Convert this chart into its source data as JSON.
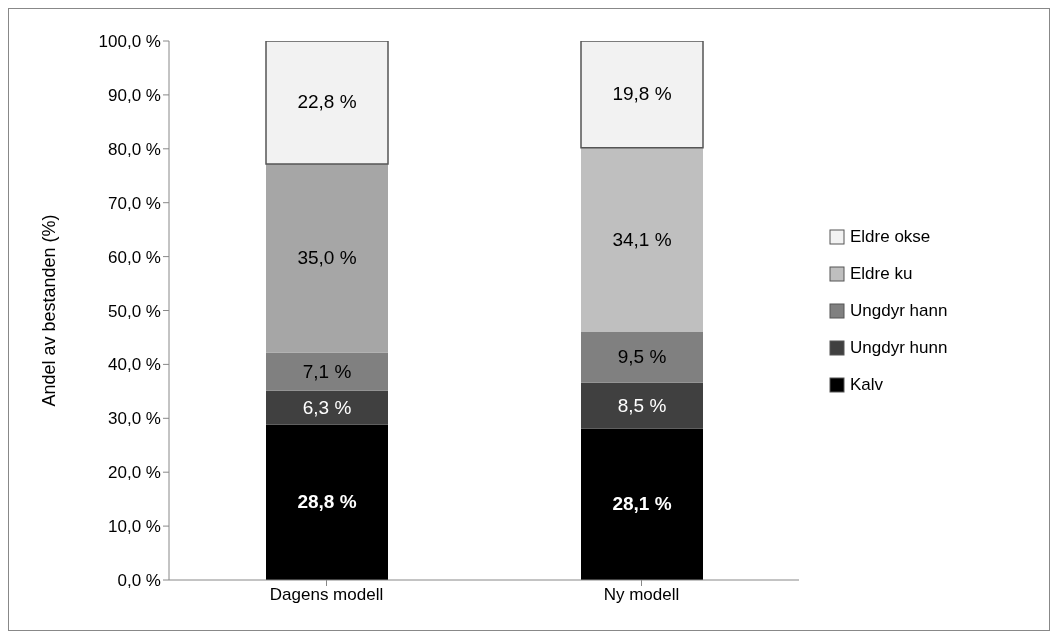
{
  "chart_data": {
    "type": "bar",
    "stacked": true,
    "ylabel": "Andel av bestanden (%)",
    "categories": [
      "Dagens modell",
      "Ny modell"
    ],
    "series": [
      {
        "name": "Kalv",
        "color": "#000000",
        "values": [
          28.8,
          28.1
        ],
        "value_labels": [
          "28,8 %",
          "28,1 %"
        ]
      },
      {
        "name": "Ungdyr hunn",
        "color": "#404040",
        "values": [
          6.3,
          8.5
        ],
        "value_labels": [
          "6,3 %",
          "8,5 %"
        ]
      },
      {
        "name": "Ungdyr hann",
        "color": "#808080",
        "values": [
          7.1,
          9.5
        ],
        "value_labels": [
          "7,1 %",
          "9,5 %"
        ]
      },
      {
        "name": "Eldre ku",
        "color": "#bfbfbf",
        "colors": [
          "#a6a6a6",
          "#bfbfbf"
        ],
        "values": [
          35.0,
          34.1
        ],
        "value_labels": [
          "35,0 %",
          "34,1 %"
        ]
      },
      {
        "name": "Eldre okse",
        "color": "#f2f2f2",
        "values": [
          22.8,
          19.8
        ],
        "value_labels": [
          "22,8 %",
          "19,8 %"
        ]
      }
    ],
    "ylim": [
      0,
      100
    ],
    "yticks": [
      {
        "value": 0,
        "label": "0,0 %"
      },
      {
        "value": 10,
        "label": "10,0 %"
      },
      {
        "value": 20,
        "label": "20,0 %"
      },
      {
        "value": 30,
        "label": "30,0 %"
      },
      {
        "value": 40,
        "label": "40,0 %"
      },
      {
        "value": 50,
        "label": "50,0 %"
      },
      {
        "value": 60,
        "label": "60,0 %"
      },
      {
        "value": 70,
        "label": "70,0 %"
      },
      {
        "value": 80,
        "label": "80,0 %"
      },
      {
        "value": 90,
        "label": "90,0 %"
      },
      {
        "value": 100,
        "label": "100,0 %"
      }
    ],
    "grid": false,
    "legend": "right"
  }
}
